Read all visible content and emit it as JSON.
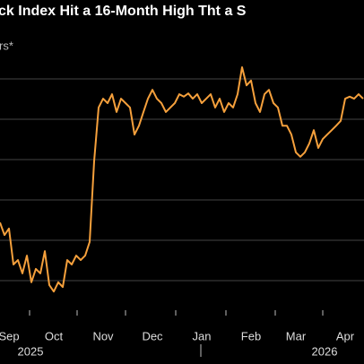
{
  "chart_data": {
    "type": "line",
    "title": "ck Index Hit a 16-Month High Tht a S",
    "subtitle": "rs*",
    "categories": [
      null,
      null,
      "Sep",
      null,
      null,
      null,
      null,
      null,
      null,
      null,
      null,
      null,
      "Oct",
      null,
      null,
      null,
      null,
      null,
      null,
      null,
      null,
      null,
      null,
      "Nov",
      null,
      null,
      null,
      null,
      null,
      null,
      null,
      null,
      null,
      null,
      "Dec",
      null,
      null,
      null,
      null,
      null,
      null,
      null,
      null,
      null,
      null,
      "Jan",
      null,
      null,
      null,
      null,
      null,
      null,
      null,
      null,
      null,
      null,
      "Feb",
      null,
      null,
      null,
      null,
      null,
      null,
      null,
      null,
      null,
      "Mar",
      null,
      null,
      null,
      null,
      null,
      null,
      null,
      null,
      null,
      null,
      "Apr",
      null,
      null,
      null,
      null
    ],
    "year_labels": [
      "2025",
      "2026"
    ],
    "series": [
      {
        "color": "#f5a03c",
        "values": [
          2.44,
          2.13,
          2.29,
          1.4,
          1.51,
          1.18,
          1.62,
          0.96,
          1.29,
          1.18,
          1.73,
          0.89,
          0.73,
          0.96,
          0.84,
          1.51,
          1.4,
          1.62,
          1.51,
          1.62,
          1.96,
          3.96,
          5.29,
          5.51,
          5.4,
          5.62,
          5.18,
          5.51,
          5.4,
          5.29,
          4.62,
          4.84,
          5.18,
          5.51,
          5.73,
          5.51,
          5.4,
          5.18,
          5.29,
          5.4,
          5.62,
          5.56,
          5.64,
          5.51,
          5.62,
          5.4,
          5.51,
          5.62,
          5.29,
          5.51,
          5.18,
          5.4,
          5.29,
          5.62,
          6.29,
          5.84,
          5.96,
          5.4,
          5.18,
          5.62,
          5.73,
          5.4,
          5.29,
          4.84,
          4.84,
          4.62,
          4.18,
          4.07,
          4.18,
          4.4,
          4.73,
          4.29,
          4.51,
          4.62,
          4.73,
          4.84,
          4.96,
          5.51,
          5.56,
          5.51,
          5.62,
          5.51
        ]
      }
    ],
    "ylim": [
      0,
      7
    ],
    "gridlines": [
      1,
      2,
      3,
      4,
      5,
      6
    ],
    "grid": true
  }
}
